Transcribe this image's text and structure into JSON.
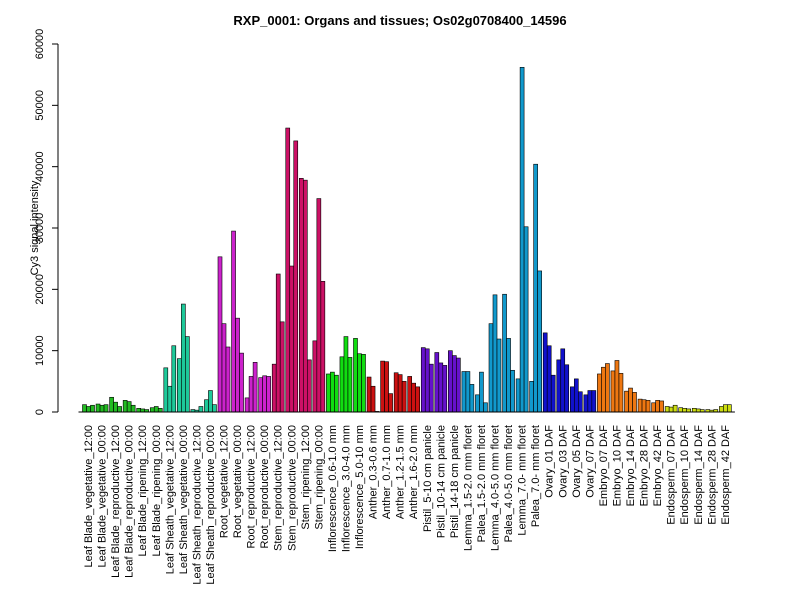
{
  "chart_data": {
    "type": "bar",
    "title": "RXP_0001: Organs and tissues; Os02g0708400_14596",
    "xlabel": "",
    "ylabel": "Cy3 signal intensity",
    "ylim": [
      0,
      60000
    ],
    "yticks": [
      0,
      10000,
      20000,
      30000,
      40000,
      50000,
      60000
    ],
    "grid": false,
    "legend": "none",
    "categories": [
      "Leaf Blade_vegetative_12:00",
      "Leaf Blade_vegetative_00:00",
      "Leaf Blade_reproductive_12:00",
      "Leaf Blade_reproductive_00:00",
      "Leaf Blade_ripening_12:00",
      "Leaf Blade_ripening_00:00",
      "Leaf Sheath_vegetative_12:00",
      "Leaf Sheath_vegetative_00:00",
      "Leaf Sheath_reproductive_12:00",
      "Leaf Sheath_reproductive_00:00",
      "Root_vegetative_12:00",
      "Root_vegetative_00:00",
      "Root_reproductive_12:00",
      "Root_reproductive_00:00",
      "Stem_reproductive_12:00",
      "Stem_reproductive_00:00",
      "Stem_ripening_12:00",
      "Stem_ripening_00:00",
      "Inflorescence_0.6-1.0 mm",
      "Inflorescence_3.0-4.0 mm",
      "Inflorescence_5.0-10 mm",
      "Anther_0.3-0.6 mm",
      "Anther_0.7-1.0 mm",
      "Anther_1.2-1.5 mm",
      "Anther_1.6-2.0 mm",
      "Pistil_5-10 cm panicle",
      "Pistil_10-14 cm panicle",
      "Pistil_14-18 cm panicle",
      "Lemma_1.5-2.0 mm floret",
      "Palea_1.5-2.0 mm floret",
      "Lemma_4.0-5.0 mm floret",
      "Palea_4.0-5.0 mm floret",
      "Lemma_7.0- mm floret",
      "Palea_7.0- mm floret",
      "Ovary_01 DAF",
      "Ovary_03 DAF",
      "Ovary_05 DAF",
      "Ovary_07 DAF",
      "Embryo_07 DAF",
      "Embryo_10 DAF",
      "Embryo_14 DAF",
      "Embryo_28 DAF",
      "Embryo_42 DAF",
      "Endosperm_07 DAF",
      "Endosperm_10 DAF",
      "Endosperm_14 DAF",
      "Endosperm_28 DAF",
      "Endosperm_42 DAF"
    ],
    "colors": [
      "#22bb22",
      "#22bb22",
      "#22bb22",
      "#22bb22",
      "#22bb22",
      "#22bb22",
      "#1ec99a",
      "#1ec99a",
      "#1ec99a",
      "#1ec99a",
      "#cc22cc",
      "#cc22cc",
      "#cc22cc",
      "#cc22cc",
      "#cc1166",
      "#cc1166",
      "#cc1166",
      "#cc1166",
      "#11dd11",
      "#11dd11",
      "#11dd11",
      "#cc1111",
      "#cc1111",
      "#cc1111",
      "#cc1111",
      "#6611cc",
      "#6611cc",
      "#6611cc",
      "#1199cc",
      "#1199cc",
      "#1199cc",
      "#1199cc",
      "#1199cc",
      "#1199cc",
      "#1111cc",
      "#1111cc",
      "#1111cc",
      "#1111cc",
      "#ee7711",
      "#ee7711",
      "#ee7711",
      "#ee7711",
      "#ee7711",
      "#ccdd11",
      "#ccdd11",
      "#ccdd11",
      "#ccdd11",
      "#ccdd11"
    ],
    "replicates": [
      [
        1200,
        900,
        1100
      ],
      [
        1300,
        1100,
        1200
      ],
      [
        2400,
        1600,
        900
      ],
      [
        1900,
        1700,
        1100
      ],
      [
        600,
        500,
        400
      ],
      [
        700,
        900,
        600
      ],
      [
        7200,
        4200,
        10800
      ],
      [
        8700,
        17600,
        12300
      ],
      [
        400,
        300,
        900
      ],
      [
        2000,
        3500,
        1200
      ],
      [
        25300,
        14400,
        10600
      ],
      [
        29500,
        15300,
        9600
      ],
      [
        2300,
        5800,
        8100
      ],
      [
        5600,
        5900,
        5800
      ],
      [
        7800,
        22500,
        14700
      ],
      [
        46300,
        23800,
        44200
      ],
      [
        38100,
        37800,
        8500
      ],
      [
        11600,
        34800,
        21300
      ],
      [
        6200,
        6500,
        6000
      ],
      [
        9000,
        12300,
        8900
      ],
      [
        12000,
        9500,
        9400
      ],
      [
        5700,
        4200,
        100
      ],
      [
        8300,
        8200,
        3000
      ],
      [
        6400,
        6100,
        5000
      ],
      [
        5800,
        4700,
        4100
      ],
      [
        10500,
        10300,
        7800
      ],
      [
        9700,
        8000,
        7600
      ],
      [
        10000,
        9200,
        8800
      ],
      [
        6600,
        6600,
        4500
      ],
      [
        2800,
        6500,
        1500
      ],
      [
        14400,
        19100,
        11900
      ],
      [
        19200,
        12000,
        6800
      ],
      [
        5400,
        56200,
        30200
      ],
      [
        5000,
        40400,
        23000
      ],
      [
        12900,
        10800,
        6000
      ],
      [
        8500,
        10300,
        7700
      ],
      [
        4100,
        5400,
        3300
      ],
      [
        2800,
        3500,
        3500
      ],
      [
        6200,
        7300,
        7900
      ],
      [
        6700,
        8400,
        6300
      ],
      [
        3400,
        3900,
        3200
      ],
      [
        2100,
        2000,
        1900
      ],
      [
        1500,
        1900,
        1800
      ],
      [
        900,
        800,
        1100
      ],
      [
        700,
        600,
        500
      ],
      [
        600,
        500,
        400
      ],
      [
        400,
        300,
        400
      ],
      [
        900,
        1200,
        1200
      ]
    ]
  }
}
